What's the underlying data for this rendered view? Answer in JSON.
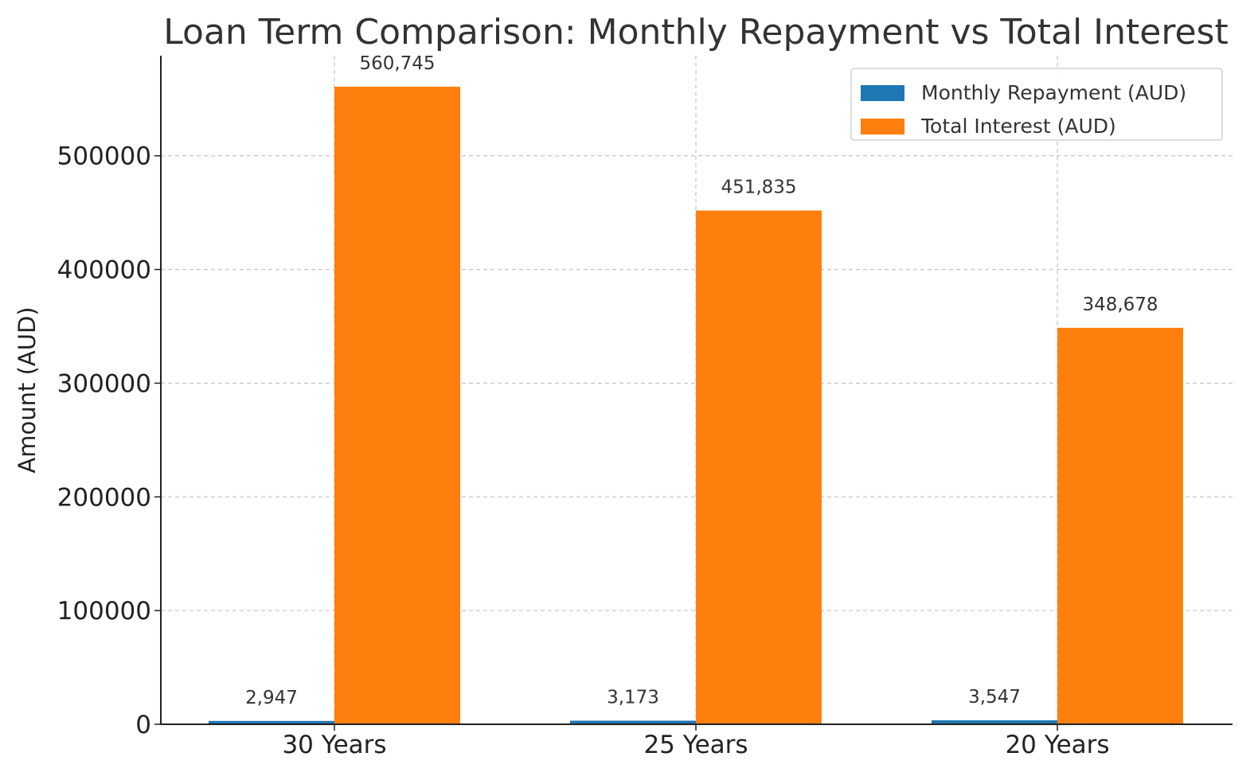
{
  "chart_data": {
    "type": "bar",
    "title": "Loan Term Comparison: Monthly Repayment vs Total Interest",
    "xlabel": "",
    "ylabel": "Amount (AUD)",
    "categories": [
      "30 Years",
      "25 Years",
      "20 Years"
    ],
    "series": [
      {
        "name": "Monthly Repayment (AUD)",
        "color": "#1f77b4",
        "values": [
          2947,
          3173,
          3547
        ],
        "labels": [
          "2,947",
          "3,173",
          "3,547"
        ]
      },
      {
        "name": "Total Interest (AUD)",
        "color": "#ff7f0e",
        "values": [
          560745,
          451835,
          348678
        ],
        "labels": [
          "560,745",
          "451,835",
          "348,678"
        ]
      }
    ],
    "ylim": [
      0,
      588000
    ],
    "yticks": [
      0,
      100000,
      200000,
      300000,
      400000,
      500000
    ],
    "ytick_labels": [
      "0",
      "100000",
      "200000",
      "300000",
      "400000",
      "500000"
    ],
    "grid": true,
    "legend_position": "top-right"
  }
}
